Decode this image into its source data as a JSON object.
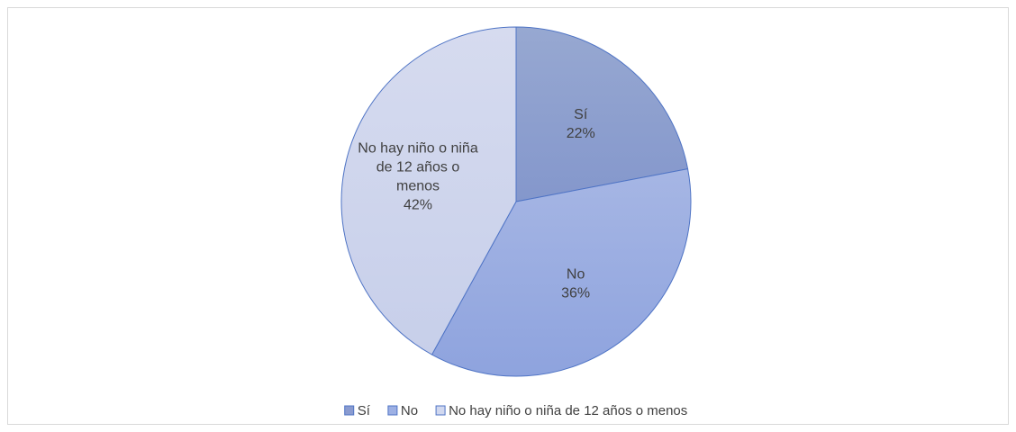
{
  "chart_data": {
    "type": "pie",
    "title": "",
    "legend_position": "bottom",
    "slices": [
      {
        "name": "Sí",
        "value": 22,
        "label_lines": [
          "Sí",
          "22%"
        ],
        "fill_start": "#97a8d1",
        "fill_end": "#8497cc",
        "legend_color": "#8a9bd0"
      },
      {
        "name": "No",
        "value": 36,
        "label_lines": [
          "No",
          "36%"
        ],
        "fill_start": "#a6b6e4",
        "fill_end": "#8ea3de",
        "legend_color": "#9db0e4"
      },
      {
        "name": "No hay niño o niña de 12 años o menos",
        "value": 42,
        "label_lines": [
          "No hay niño o niña",
          "de 12 años o",
          "menos",
          "42%"
        ],
        "fill_start": "#d6dbef",
        "fill_end": "#c7cfea",
        "legend_color": "#d1d8ef"
      }
    ],
    "edge_color": "#4f74c5"
  }
}
